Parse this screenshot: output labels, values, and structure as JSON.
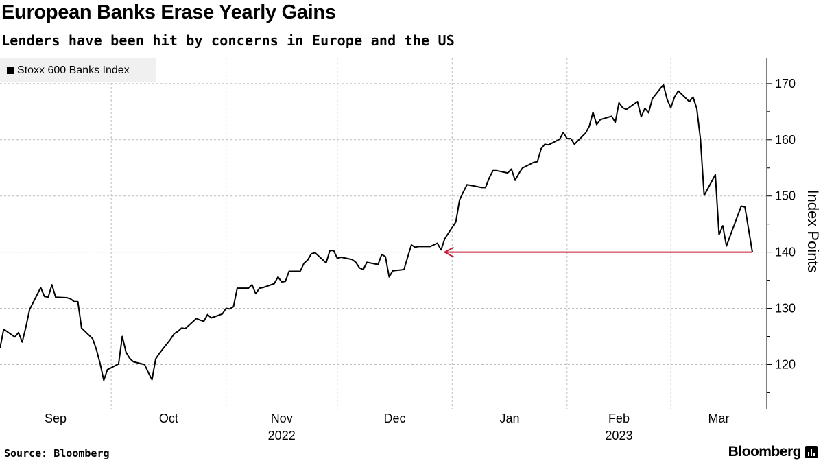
{
  "chart_data": {
    "type": "line",
    "title": "European Banks Erase Yearly Gains",
    "subtitle": "Lenders have been hit by concerns in Europe and the US",
    "ylabel": "Index Points",
    "xlabel": "",
    "ylim": [
      112,
      174.5
    ],
    "y_ticks": [
      120,
      130,
      140,
      150,
      160,
      170
    ],
    "y_axis_side": "right",
    "grid": true,
    "legend_placement": "top-left",
    "x_month_labels": [
      {
        "label": "Sep",
        "month": "2022-09"
      },
      {
        "label": "Oct",
        "month": "2022-10"
      },
      {
        "label": "Nov",
        "month": "2022-11"
      },
      {
        "label": "Dec",
        "month": "2022-12"
      },
      {
        "label": "Jan",
        "month": "2023-01"
      },
      {
        "label": "Feb",
        "month": "2023-02"
      },
      {
        "label": "Mar",
        "month": "2023-03"
      }
    ],
    "x_year_labels": [
      {
        "label": "2022",
        "under": "Nov"
      },
      {
        "label": "2023",
        "under": "Feb"
      }
    ],
    "series": [
      {
        "name": "Stoxx 600 Banks Index",
        "color": "#000000",
        "dates": [
          "2022-09-01",
          "2022-09-02",
          "2022-09-05",
          "2022-09-06",
          "2022-09-07",
          "2022-09-08",
          "2022-09-09",
          "2022-09-12",
          "2022-09-13",
          "2022-09-14",
          "2022-09-15",
          "2022-09-16",
          "2022-09-19",
          "2022-09-20",
          "2022-09-21",
          "2022-09-22",
          "2022-09-23",
          "2022-09-26",
          "2022-09-27",
          "2022-09-28",
          "2022-09-29",
          "2022-09-30",
          "2022-10-03",
          "2022-10-04",
          "2022-10-05",
          "2022-10-06",
          "2022-10-07",
          "2022-10-10",
          "2022-10-11",
          "2022-10-12",
          "2022-10-13",
          "2022-10-14",
          "2022-10-17",
          "2022-10-18",
          "2022-10-19",
          "2022-10-20",
          "2022-10-21",
          "2022-10-24",
          "2022-10-25",
          "2022-10-26",
          "2022-10-27",
          "2022-10-28",
          "2022-10-31",
          "2022-11-01",
          "2022-11-02",
          "2022-11-03",
          "2022-11-04",
          "2022-11-07",
          "2022-11-08",
          "2022-11-09",
          "2022-11-10",
          "2022-11-11",
          "2022-11-14",
          "2022-11-15",
          "2022-11-16",
          "2022-11-17",
          "2022-11-18",
          "2022-11-21",
          "2022-11-22",
          "2022-11-23",
          "2022-11-24",
          "2022-11-25",
          "2022-11-28",
          "2022-11-29",
          "2022-11-30",
          "2022-12-01",
          "2022-12-02",
          "2022-12-05",
          "2022-12-06",
          "2022-12-07",
          "2022-12-08",
          "2022-12-09",
          "2022-12-12",
          "2022-12-13",
          "2022-12-14",
          "2022-12-15",
          "2022-12-16",
          "2022-12-19",
          "2022-12-20",
          "2022-12-21",
          "2022-12-22",
          "2022-12-23",
          "2022-12-26",
          "2022-12-27",
          "2022-12-28",
          "2022-12-29",
          "2022-12-30",
          "2023-01-02",
          "2023-01-03",
          "2023-01-04",
          "2023-01-05",
          "2023-01-06",
          "2023-01-09",
          "2023-01-10",
          "2023-01-11",
          "2023-01-12",
          "2023-01-13",
          "2023-01-16",
          "2023-01-17",
          "2023-01-18",
          "2023-01-19",
          "2023-01-20",
          "2023-01-23",
          "2023-01-24",
          "2023-01-25",
          "2023-01-26",
          "2023-01-27",
          "2023-01-30",
          "2023-01-31",
          "2023-02-01",
          "2023-02-02",
          "2023-02-03",
          "2023-02-06",
          "2023-02-07",
          "2023-02-08",
          "2023-02-09",
          "2023-02-10",
          "2023-02-13",
          "2023-02-14",
          "2023-02-15",
          "2023-02-16",
          "2023-02-17",
          "2023-02-20",
          "2023-02-21",
          "2023-02-22",
          "2023-02-23",
          "2023-02-24",
          "2023-02-27",
          "2023-02-28",
          "2023-03-01",
          "2023-03-02",
          "2023-03-03",
          "2023-03-06",
          "2023-03-07",
          "2023-03-08",
          "2023-03-09",
          "2023-03-10",
          "2023-03-13",
          "2023-03-14",
          "2023-03-15",
          "2023-03-16",
          "2023-03-17",
          "2023-03-20",
          "2023-03-21",
          "2023-03-22",
          "2023-03-23"
        ],
        "values": [
          122.9,
          126.3,
          124.9,
          125.7,
          124.0,
          126.7,
          129.8,
          133.7,
          132.1,
          132.0,
          134.2,
          132.0,
          131.9,
          131.7,
          131.2,
          131.2,
          126.5,
          124.6,
          122.7,
          120.2,
          117.2,
          119.1,
          120.1,
          125.0,
          122.2,
          121.1,
          120.5,
          120.0,
          118.6,
          117.3,
          121.0,
          122.0,
          124.5,
          125.5,
          125.9,
          126.5,
          126.4,
          128.2,
          127.9,
          127.7,
          128.9,
          128.3,
          129.0,
          130.0,
          129.9,
          130.3,
          133.6,
          133.6,
          134.2,
          132.6,
          133.6,
          133.7,
          134.4,
          135.6,
          134.7,
          134.8,
          136.6,
          136.6,
          138.0,
          138.6,
          139.7,
          139.9,
          138.1,
          140.3,
          140.3,
          138.9,
          139.1,
          138.7,
          138.2,
          137.2,
          136.9,
          138.2,
          137.8,
          139.6,
          139.2,
          135.6,
          136.7,
          136.9,
          139.1,
          141.3,
          140.9,
          141.0,
          141.0,
          141.3,
          141.6,
          140.4,
          142.4,
          145.4,
          149.3,
          150.7,
          152.0,
          151.9,
          151.5,
          151.5,
          153.2,
          154.5,
          154.5,
          154.1,
          154.8,
          152.8,
          154.0,
          155.0,
          156.0,
          156.1,
          158.4,
          159.2,
          159.1,
          160.1,
          161.3,
          160.2,
          160.2,
          159.2,
          161.2,
          162.4,
          164.9,
          162.7,
          163.6,
          164.2,
          163.1,
          166.6,
          165.7,
          165.4,
          166.8,
          164.1,
          165.6,
          164.8,
          167.3,
          169.8,
          167.2,
          165.7,
          167.6,
          168.7,
          166.8,
          167.6,
          165.6,
          160.1,
          150.1,
          153.8,
          143.1,
          144.7,
          141.1,
          142.9,
          148.2,
          148.0,
          144.0,
          140.0
        ]
      }
    ],
    "annotations": [
      {
        "type": "arrow",
        "y": 140,
        "from_date": "2023-03-23",
        "to_date": "2022-12-30",
        "color": "#c41e3a"
      }
    ]
  },
  "legend": {
    "label": "Stoxx 600 Banks Index",
    "swatch_color": "#000000"
  },
  "footer": {
    "source": "Source: Bloomberg",
    "logo": "Bloomberg"
  }
}
